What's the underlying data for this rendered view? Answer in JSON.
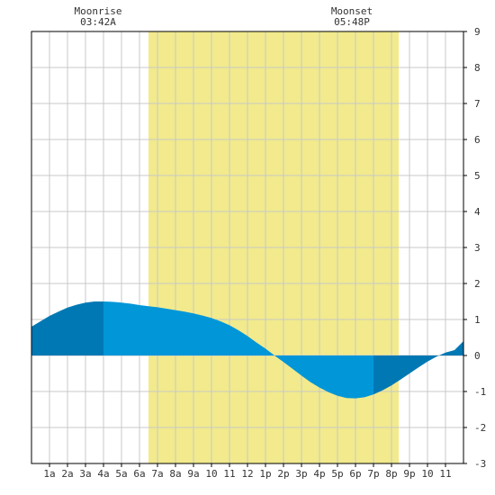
{
  "chart_data": {
    "type": "area",
    "title": "",
    "xlabel": "",
    "ylabel": "",
    "x_tick_labels": [
      "1a",
      "2a",
      "3a",
      "4a",
      "5a",
      "6a",
      "7a",
      "8a",
      "9a",
      "10",
      "11",
      "12",
      "1p",
      "2p",
      "3p",
      "4p",
      "5p",
      "6p",
      "7p",
      "8p",
      "9p",
      "10",
      "11"
    ],
    "x_range_hours": [
      0,
      24
    ],
    "ylim": [
      -3,
      9
    ],
    "y_ticks": [
      -3,
      -2,
      -1,
      0,
      1,
      2,
      3,
      4,
      5,
      6,
      7,
      8,
      9
    ],
    "grid": true,
    "daylight": {
      "start_hour": 6.5,
      "end_hour": 20.4
    },
    "series": [
      {
        "x": [
          0,
          0.5,
          1,
          1.5,
          2,
          2.5,
          3,
          3.5,
          4,
          4.5,
          5,
          5.5,
          6,
          6.5,
          7,
          7.5,
          8,
          8.5,
          9,
          9.5,
          10,
          10.5,
          11,
          11.5,
          12,
          12.5,
          13,
          13.5,
          14,
          14.5,
          15,
          15.5,
          16,
          16.5,
          17,
          17.5,
          18,
          18.5,
          19,
          19.5,
          20,
          20.5,
          21,
          21.5,
          22,
          22.5,
          23,
          23.5,
          24
        ],
        "values": [
          0.8,
          0.95,
          1.1,
          1.22,
          1.33,
          1.41,
          1.47,
          1.5,
          1.5,
          1.49,
          1.47,
          1.44,
          1.4,
          1.37,
          1.34,
          1.3,
          1.26,
          1.22,
          1.17,
          1.11,
          1.04,
          0.95,
          0.84,
          0.7,
          0.54,
          0.36,
          0.19,
          0.0,
          -0.18,
          -0.37,
          -0.56,
          -0.74,
          -0.89,
          -1.02,
          -1.12,
          -1.18,
          -1.19,
          -1.16,
          -1.08,
          -0.97,
          -0.83,
          -0.67,
          -0.5,
          -0.33,
          -0.17,
          -0.03,
          0.08,
          0.15,
          0.4
        ]
      }
    ],
    "annotations": [
      {
        "label": "Moonrise",
        "time": "03:42A",
        "hour": 3.7
      },
      {
        "label": "Moonset",
        "time": "05:48P",
        "hour": 17.8
      }
    ],
    "colors": {
      "daylight": "#f2ea8c",
      "tide_day": "#0096d8",
      "tide_night": "#0078b4",
      "grid": "#c8c8c8",
      "axis": "#000000"
    }
  }
}
